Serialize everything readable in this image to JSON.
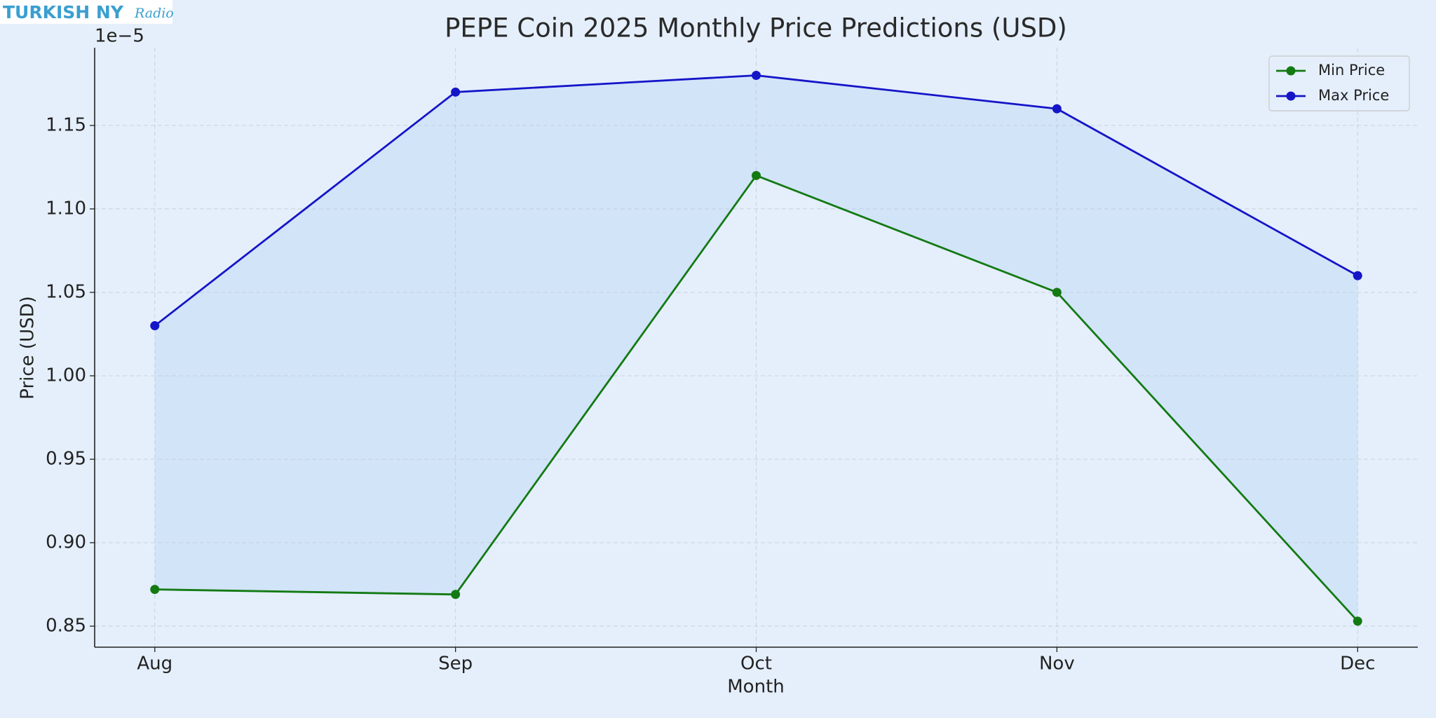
{
  "watermark": {
    "text": "TURKISH NY",
    "script": "Radio"
  },
  "chart_data": {
    "type": "line",
    "title": "PEPE Coin 2025 Monthly Price Predictions (USD)",
    "x_label": "Month",
    "y_label": "Price (USD)",
    "y_offset_label": "1e−5",
    "categories": [
      "Aug",
      "Sep",
      "Oct",
      "Nov",
      "Dec"
    ],
    "series": [
      {
        "name": "Min Price",
        "color": "#137a13",
        "values": [
          0.872,
          0.869,
          1.12,
          1.05,
          0.853
        ]
      },
      {
        "name": "Max Price",
        "color": "#1515c8",
        "values": [
          1.03,
          1.17,
          1.18,
          1.16,
          1.06
        ]
      }
    ],
    "fill_between": true,
    "fill_color": "#cfe2f7",
    "ylim": [
      0.8374,
      1.1966
    ],
    "yticks": [
      0.85,
      {
        "value": 0.9,
        "label": "0.90"
      },
      0.95,
      {
        "value": 1.0,
        "label": "1.00"
      },
      1.05,
      {
        "value": 1.1,
        "label": "1.10"
      },
      1.15
    ],
    "grid": true,
    "legend": "upper right"
  }
}
